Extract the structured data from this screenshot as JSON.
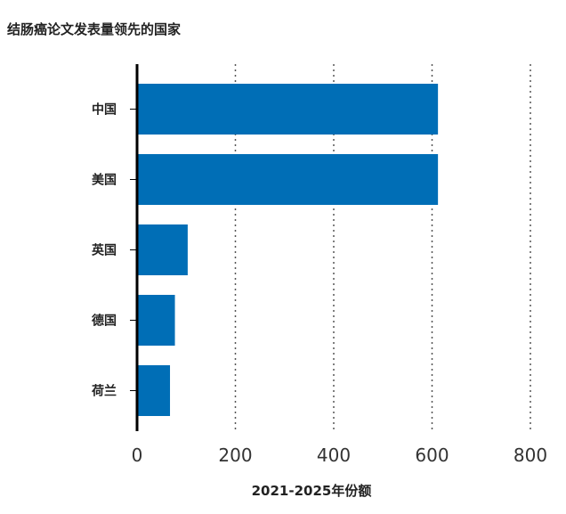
{
  "chart_data": {
    "type": "bar",
    "orientation": "horizontal",
    "title": "结肠癌论文发表量领先的国家",
    "xlabel": "2021-2025年份额",
    "ylabel": "",
    "categories": [
      "中国",
      "美国",
      "英国",
      "德国",
      "荷兰"
    ],
    "values": [
      612,
      612,
      103,
      77,
      67
    ],
    "xlim": [
      0,
      800
    ],
    "xticks": [
      0,
      200,
      400,
      600,
      800
    ],
    "grid": "vertical-dotted",
    "colors": {
      "bar": "#006eb6",
      "axis": "#000000",
      "grid": "#555555"
    }
  }
}
